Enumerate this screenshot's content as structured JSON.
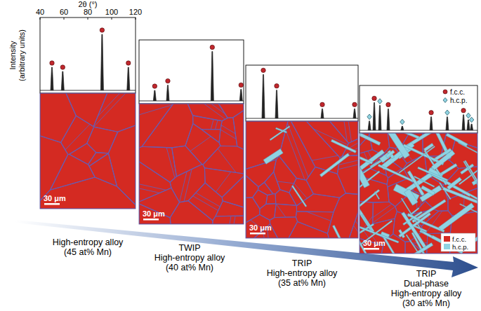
{
  "chart_data": [
    {
      "type": "stem",
      "title": "High-entropy alloy\n(45 at% Mn)",
      "x_label": "2θ (°)",
      "y_label": "Intensity\n(arbitrary units)",
      "xlim": [
        40,
        120
      ],
      "xticks": [
        40,
        60,
        80,
        100,
        120
      ],
      "ylim": [
        0,
        1
      ],
      "tick_labels": "x",
      "series": [
        {
          "color": "#c1272d",
          "marker": "circle",
          "x": [
            50,
            59,
            92,
            114
          ],
          "values": [
            0.33,
            0.27,
            0.8,
            0.33
          ]
        }
      ],
      "scale_bar": "30 μm"
    },
    {
      "type": "stem",
      "title": "TWIP\nHigh-entropy alloy\n(40 at% Mn)",
      "xlim": [
        40,
        120
      ],
      "ylim": [
        0,
        1
      ],
      "tick_labels": false,
      "series": [
        {
          "color": "#c1272d",
          "marker": "circle",
          "x": [
            52,
            62,
            96,
            118
          ],
          "values": [
            0.18,
            0.27,
            0.85,
            0.2
          ]
        }
      ],
      "scale_bar": "30 μm"
    },
    {
      "type": "stem",
      "title": "TRIP\nHigh-entropy alloy\n(35 at% Mn)",
      "xlim": [
        40,
        120
      ],
      "ylim": [
        0,
        1
      ],
      "tick_labels": false,
      "series": [
        {
          "color": "#c1272d",
          "marker": "circle",
          "x": [
            52.5,
            62,
            94.5,
            117.5
          ],
          "values": [
            0.87,
            0.56,
            0.19,
            0.19
          ]
        }
      ],
      "scale_bar": "30 μm"
    },
    {
      "type": "stem",
      "title": "TRIP\nDual-phase\nHigh-entropy alloy\n(30 at% Mn)",
      "xlim": [
        40,
        120
      ],
      "ylim": [
        0,
        1
      ],
      "tick_labels": false,
      "legend": "top-right",
      "series": [
        {
          "name": "f.c.c.",
          "color": "#c1272d",
          "marker": "circle",
          "x": [
            50,
            59.5,
            88.6,
            110.5
          ],
          "values": [
            0.66,
            0.51,
            0.32,
            0.37
          ]
        },
        {
          "name": "h.c.p.",
          "color": "#8fd3e2",
          "marker": "diamond",
          "x": [
            46.7,
            53.8,
            69,
            99.5,
            113.8,
            116
          ],
          "values": [
            0.22,
            0.59,
            0.1,
            0.32,
            0.25,
            0.15
          ]
        }
      ],
      "scale_bar": "30 μm",
      "map_legend": [
        {
          "name": "f.c.c.",
          "color": "#d42a22"
        },
        {
          "name": "h.c.p.",
          "color": "#8fd3e2"
        }
      ]
    }
  ]
}
